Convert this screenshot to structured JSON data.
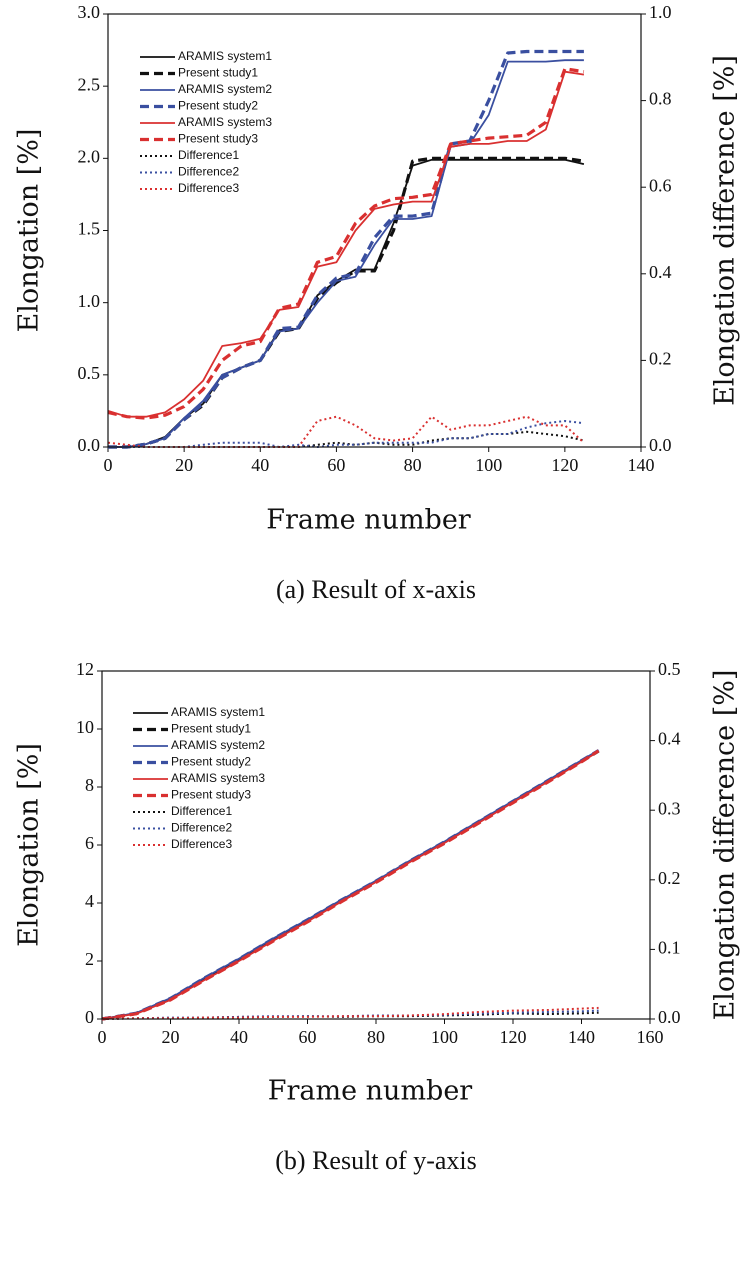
{
  "chart_data": [
    {
      "type": "line",
      "x_label": "Frame number",
      "y_label": "Elongation [%]",
      "y2_label": "Elongation difference [%]",
      "caption": "(a) Result of x-axis",
      "xlim": [
        0,
        140
      ],
      "xticks": [
        0,
        20,
        40,
        60,
        80,
        100,
        120,
        140
      ],
      "ylim": [
        0,
        3
      ],
      "yticks": [
        {
          "value": 0,
          "label": "0.0"
        },
        0.5,
        {
          "value": 1,
          "label": "1.0"
        },
        1.5,
        {
          "value": 2,
          "label": "2.0"
        },
        2.5,
        {
          "value": 3,
          "label": "3.0"
        }
      ],
      "y2lim": [
        0,
        1
      ],
      "y2ticks": [
        {
          "value": 0,
          "label": "0.0"
        },
        0.2,
        0.4,
        0.6,
        0.8,
        {
          "value": 1,
          "label": "1.0"
        }
      ],
      "legend": "upper left",
      "x": [
        0,
        5,
        10,
        15,
        20,
        25,
        30,
        35,
        40,
        45,
        50,
        55,
        60,
        65,
        70,
        75,
        80,
        85,
        90,
        95,
        100,
        105,
        110,
        115,
        120,
        125
      ],
      "series": [
        {
          "name": "ARAMIS system1",
          "color": "#111111",
          "dash": "solid",
          "values": [
            0,
            0,
            0.02,
            0.07,
            0.2,
            0.3,
            0.5,
            0.55,
            0.6,
            0.81,
            0.82,
            1.05,
            1.15,
            1.23,
            1.23,
            1.55,
            1.95,
            1.99,
            1.99,
            1.99,
            1.99,
            1.99,
            1.99,
            1.99,
            1.99,
            1.96
          ]
        },
        {
          "name": "Present study1",
          "color": "#111111",
          "dash": "dashed",
          "values": [
            0,
            0,
            0.02,
            0.06,
            0.19,
            0.29,
            0.48,
            0.55,
            0.6,
            0.8,
            0.82,
            1.03,
            1.14,
            1.22,
            1.22,
            1.5,
            1.98,
            2.0,
            2.0,
            2.0,
            2.0,
            2.0,
            2.0,
            2.0,
            2.0,
            1.98
          ]
        },
        {
          "name": "ARAMIS system2",
          "color": "#3a4fa0",
          "dash": "solid",
          "values": [
            0,
            0,
            0.02,
            0.06,
            0.2,
            0.32,
            0.5,
            0.55,
            0.6,
            0.8,
            0.82,
            1.0,
            1.15,
            1.18,
            1.4,
            1.58,
            1.58,
            1.6,
            2.08,
            2.1,
            2.3,
            2.67,
            2.67,
            2.67,
            2.68,
            2.68
          ]
        },
        {
          "name": "Present study2",
          "color": "#3a4fa0",
          "dash": "dashed",
          "values": [
            0,
            0,
            0.02,
            0.06,
            0.19,
            0.3,
            0.48,
            0.55,
            0.6,
            0.82,
            0.83,
            1.05,
            1.17,
            1.2,
            1.45,
            1.6,
            1.6,
            1.62,
            2.1,
            2.12,
            2.4,
            2.73,
            2.74,
            2.74,
            2.74,
            2.74
          ]
        },
        {
          "name": "ARAMIS system3",
          "color": "#d93030",
          "dash": "solid",
          "values": [
            0.25,
            0.21,
            0.21,
            0.24,
            0.33,
            0.46,
            0.7,
            0.72,
            0.75,
            0.95,
            0.97,
            1.25,
            1.28,
            1.5,
            1.65,
            1.68,
            1.7,
            1.7,
            2.08,
            2.1,
            2.1,
            2.12,
            2.12,
            2.2,
            2.6,
            2.58
          ]
        },
        {
          "name": "Present study3",
          "color": "#d93030",
          "dash": "dashed",
          "values": [
            0.24,
            0.21,
            0.2,
            0.22,
            0.28,
            0.4,
            0.6,
            0.7,
            0.73,
            0.96,
            0.99,
            1.28,
            1.32,
            1.55,
            1.67,
            1.72,
            1.73,
            1.75,
            2.1,
            2.12,
            2.14,
            2.15,
            2.16,
            2.25,
            2.62,
            2.6
          ]
        },
        {
          "name": "Difference1",
          "color": "#111111",
          "dash": "dotted",
          "axis": "y2",
          "values": [
            0,
            0,
            0,
            0,
            0,
            0,
            0,
            0,
            0,
            0,
            0,
            0.005,
            0.01,
            0.005,
            0.01,
            0.005,
            0.005,
            0.015,
            0.02,
            0.02,
            0.03,
            0.03,
            0.035,
            0.03,
            0.025,
            0.015
          ]
        },
        {
          "name": "Difference2",
          "color": "#3a4fa0",
          "dash": "dotted",
          "axis": "y2",
          "values": [
            0,
            0,
            0,
            0,
            0,
            0.005,
            0.01,
            0.01,
            0.01,
            0,
            0.005,
            0,
            0.005,
            0.005,
            0.01,
            0.01,
            0.01,
            0.01,
            0.02,
            0.02,
            0.03,
            0.03,
            0.045,
            0.055,
            0.06,
            0.055
          ]
        },
        {
          "name": "Difference3",
          "color": "#d93030",
          "dash": "dotted",
          "axis": "y2",
          "values": [
            0.01,
            0.005,
            0,
            0,
            0,
            0,
            0,
            0,
            0,
            0,
            0,
            0.06,
            0.07,
            0.05,
            0.02,
            0.015,
            0.02,
            0.07,
            0.04,
            0.05,
            0.05,
            0.06,
            0.07,
            0.05,
            0.05,
            0.01
          ]
        }
      ]
    },
    {
      "type": "line",
      "x_label": "Frame number",
      "y_label": "Elongation [%]",
      "y2_label": "Elongation difference [%]",
      "caption": "(b) Result of y-axis",
      "xlim": [
        0,
        160
      ],
      "xticks": [
        0,
        20,
        40,
        60,
        80,
        100,
        120,
        140,
        160
      ],
      "ylim": [
        0,
        12
      ],
      "yticks": [
        0,
        2,
        4,
        6,
        8,
        10,
        12
      ],
      "y2lim": [
        0,
        0.5
      ],
      "y2ticks": [
        {
          "value": 0,
          "label": "0.0"
        },
        0.1,
        0.2,
        0.3,
        0.4,
        0.5
      ],
      "legend": "upper left",
      "x": [
        0,
        10,
        20,
        30,
        40,
        50,
        60,
        70,
        80,
        90,
        100,
        110,
        120,
        130,
        140,
        145
      ],
      "series": [
        {
          "name": "ARAMIS system1",
          "color": "#111111",
          "dash": "solid",
          "values": [
            0,
            0.2,
            0.7,
            1.4,
            2.05,
            2.75,
            3.4,
            4.1,
            4.75,
            5.45,
            6.1,
            6.8,
            7.5,
            8.2,
            8.9,
            9.25
          ]
        },
        {
          "name": "Present study1",
          "color": "#111111",
          "dash": "dashed",
          "values": [
            0,
            0.19,
            0.68,
            1.38,
            2.03,
            2.72,
            3.38,
            4.08,
            4.73,
            5.43,
            6.08,
            6.78,
            7.48,
            8.18,
            8.88,
            9.24
          ]
        },
        {
          "name": "ARAMIS system2",
          "color": "#3a4fa0",
          "dash": "solid",
          "values": [
            0,
            0.21,
            0.72,
            1.43,
            2.08,
            2.78,
            3.43,
            4.12,
            4.77,
            5.47,
            6.12,
            6.82,
            7.52,
            8.22,
            8.92,
            9.27
          ]
        },
        {
          "name": "Present study2",
          "color": "#3a4fa0",
          "dash": "dashed",
          "values": [
            0,
            0.2,
            0.71,
            1.42,
            2.07,
            2.77,
            3.42,
            4.11,
            4.76,
            5.46,
            6.11,
            6.81,
            7.51,
            8.21,
            8.91,
            9.26
          ]
        },
        {
          "name": "ARAMIS system3",
          "color": "#d93030",
          "dash": "solid",
          "values": [
            0,
            0.18,
            0.66,
            1.35,
            2.0,
            2.7,
            3.36,
            4.06,
            4.72,
            5.42,
            6.07,
            6.77,
            7.47,
            8.17,
            8.87,
            9.23
          ]
        },
        {
          "name": "Present study3",
          "color": "#d93030",
          "dash": "dashed",
          "values": [
            0,
            0.18,
            0.66,
            1.35,
            2.0,
            2.69,
            3.35,
            4.05,
            4.71,
            5.41,
            6.06,
            6.76,
            7.46,
            8.16,
            8.87,
            9.25
          ]
        },
        {
          "name": "Difference1",
          "color": "#111111",
          "dash": "dotted",
          "axis": "y2",
          "values": [
            0,
            0.001,
            0.001,
            0.002,
            0.003,
            0.003,
            0.004,
            0.003,
            0.004,
            0.004,
            0.005,
            0.006,
            0.008,
            0.007,
            0.008,
            0.009
          ]
        },
        {
          "name": "Difference2",
          "color": "#3a4fa0",
          "dash": "dotted",
          "axis": "y2",
          "values": [
            0,
            0.001,
            0.002,
            0.002,
            0.003,
            0.004,
            0.004,
            0.004,
            0.005,
            0.005,
            0.006,
            0.008,
            0.009,
            0.01,
            0.011,
            0.012
          ]
        },
        {
          "name": "Difference3",
          "color": "#d93030",
          "dash": "dotted",
          "axis": "y2",
          "values": [
            0,
            0.001,
            0.001,
            0.002,
            0.002,
            0.003,
            0.003,
            0.004,
            0.004,
            0.005,
            0.007,
            0.01,
            0.012,
            0.013,
            0.015,
            0.016
          ]
        }
      ]
    }
  ]
}
